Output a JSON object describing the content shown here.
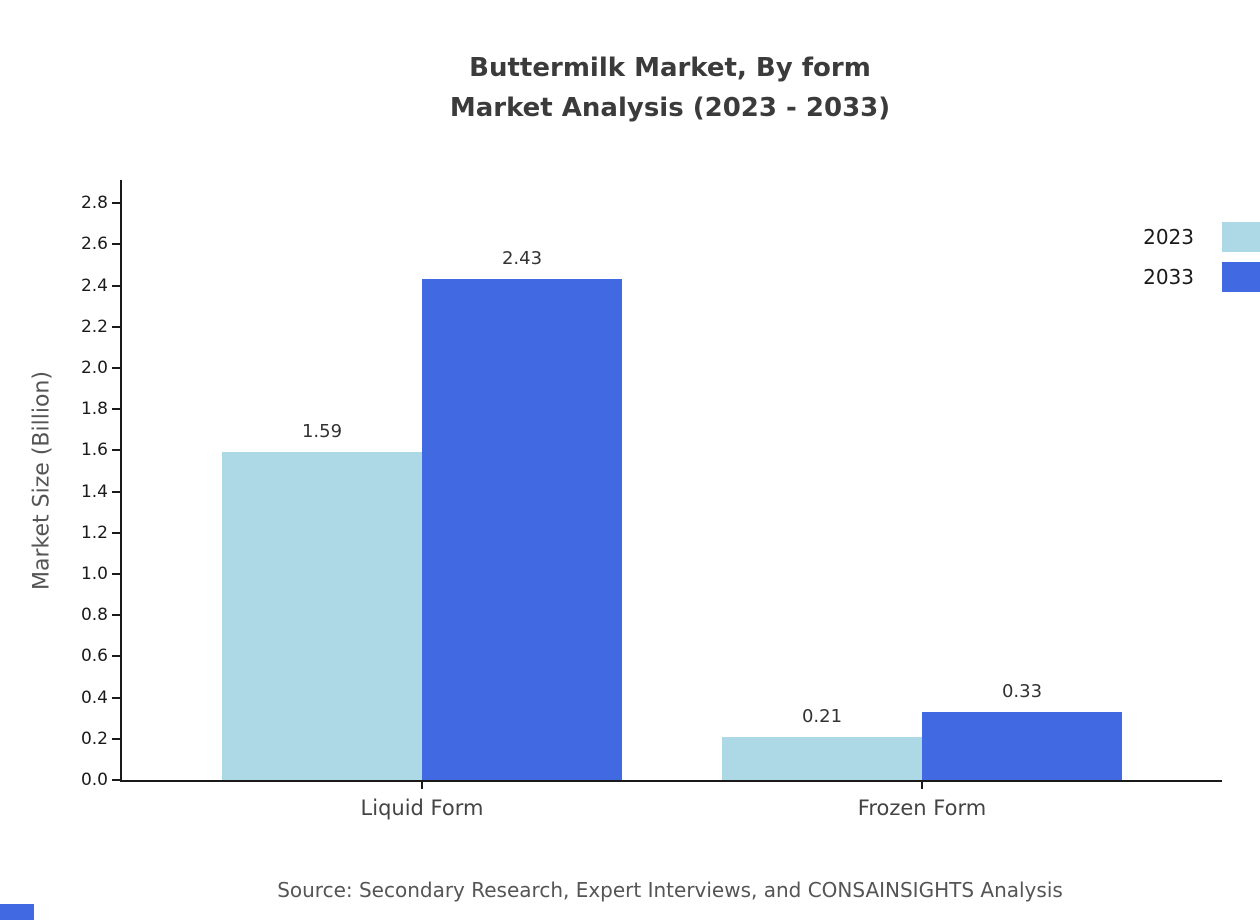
{
  "chart": {
    "title_line1": "Buttermilk Market, By form",
    "title_line2": "Market Analysis (2023 - 2033)",
    "source": "Source: Secondary Research, Expert Interviews, and CONSAINSIGHTS Analysis"
  },
  "colors": {
    "series_2023": "#add8e6",
    "series_2033": "#4169e1",
    "axis": "#1a1a1a",
    "title_text": "#3b3b3b",
    "brand_corner": "#4169e1"
  },
  "chart_data": {
    "type": "bar",
    "title": "Buttermilk Market, By form — Market Analysis (2023 - 2033)",
    "categories": [
      "Liquid Form",
      "Frozen Form"
    ],
    "series": [
      {
        "name": "2023",
        "color": "#add8e6",
        "values": [
          1.59,
          0.21
        ]
      },
      {
        "name": "2033",
        "color": "#4169e1",
        "values": [
          2.43,
          0.33
        ]
      }
    ],
    "xlabel": "",
    "ylabel": "Market Size (Billion)",
    "ylim": [
      0,
      2.9
    ],
    "yticks": [
      "0.0",
      "0.2",
      "0.4",
      "0.6",
      "0.8",
      "1.0",
      "1.2",
      "1.4",
      "1.6",
      "1.8",
      "2.0",
      "2.2",
      "2.4",
      "2.6",
      "2.8"
    ],
    "grid": false,
    "legend_position": "top-right",
    "value_label_format": "2dp"
  }
}
